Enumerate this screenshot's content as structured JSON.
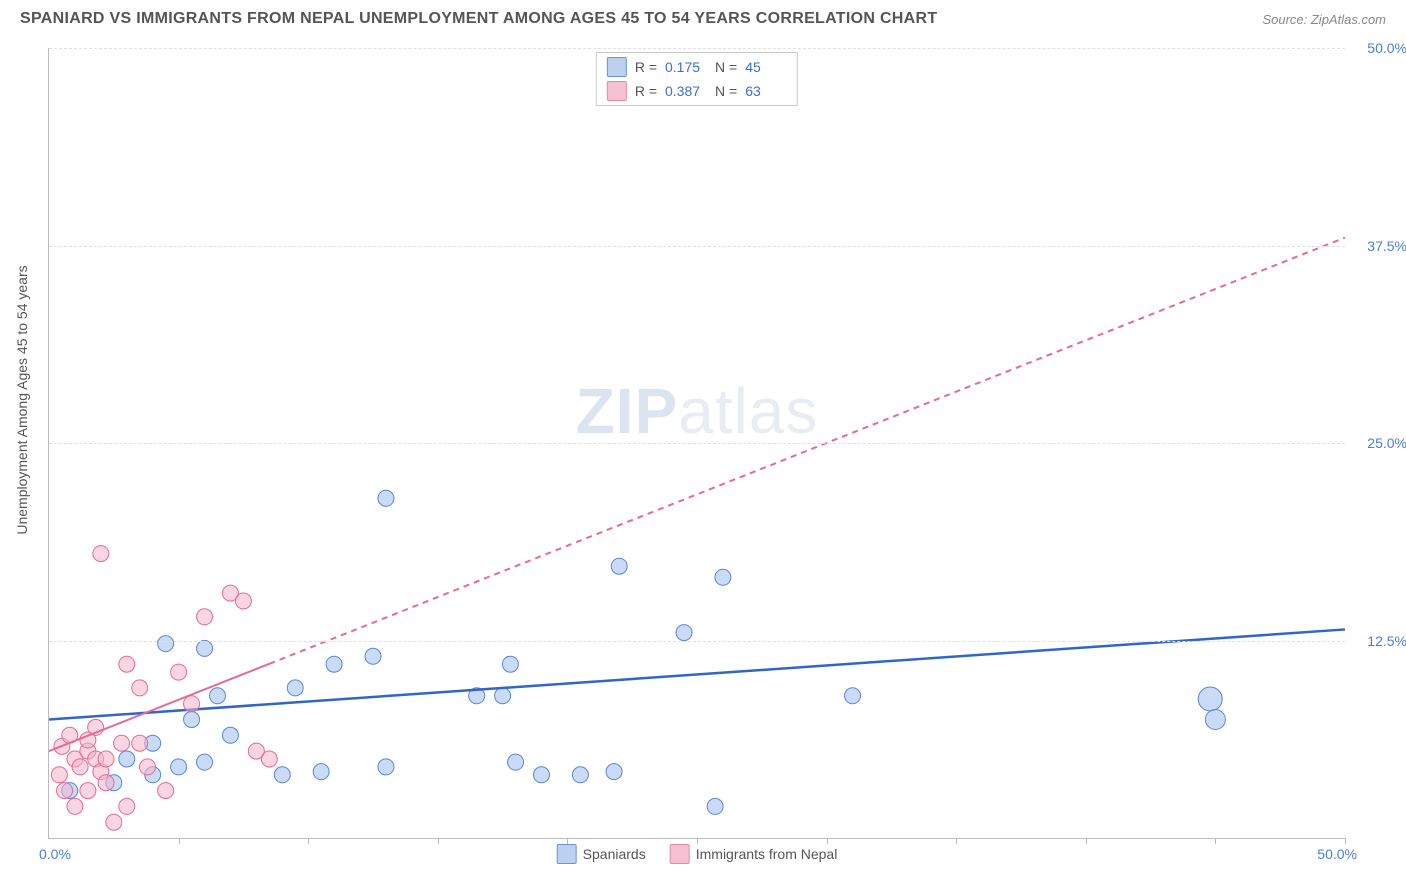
{
  "title": "SPANIARD VS IMMIGRANTS FROM NEPAL UNEMPLOYMENT AMONG AGES 45 TO 54 YEARS CORRELATION CHART",
  "source": "Source: ZipAtlas.com",
  "watermark_bold": "ZIP",
  "watermark_light": "atlas",
  "y_axis_title": "Unemployment Among Ages 45 to 54 years",
  "chart": {
    "type": "scatter",
    "background_color": "#ffffff",
    "grid_color": "#e0e0e0",
    "axis_color": "#bbbbbb",
    "tick_label_color": "#4a7fd8",
    "tick_fontsize": 14,
    "xlim": [
      0,
      50
    ],
    "ylim": [
      0,
      50
    ],
    "x_ticks": [
      0,
      5,
      10,
      15,
      20,
      25,
      30,
      35,
      40,
      45,
      50
    ],
    "y_ticks": [
      12.5,
      25.0,
      37.5,
      50.0
    ],
    "x_min_label": "0.0%",
    "x_max_label": "50.0%",
    "y_tick_labels": [
      "12.5%",
      "25.0%",
      "37.5%",
      "50.0%"
    ],
    "marker_opacity": 0.55,
    "marker_stroke_width": 1.0
  },
  "series": [
    {
      "name": "Spaniards",
      "color_fill": "#9fbef0",
      "color_stroke": "#5a86d6",
      "swatch_fill": "#bcd0f0",
      "swatch_border": "#6a93db",
      "R": "0.175",
      "N": "45",
      "marker_radius": 8,
      "regression": {
        "x1": 0,
        "y1": 7.5,
        "x2": 50,
        "y2": 13.2,
        "solid_until_x": 50,
        "stroke": "#2f66c8",
        "stroke_width": 2.5,
        "dash": ""
      },
      "points": [
        {
          "x": 13.0,
          "y": 21.5,
          "r": 8
        },
        {
          "x": 22.0,
          "y": 17.2,
          "r": 8
        },
        {
          "x": 26.0,
          "y": 16.5,
          "r": 8
        },
        {
          "x": 24.5,
          "y": 13.0,
          "r": 8
        },
        {
          "x": 31.0,
          "y": 9.0,
          "r": 8
        },
        {
          "x": 44.8,
          "y": 8.8,
          "r": 12
        },
        {
          "x": 45.0,
          "y": 7.5,
          "r": 10
        },
        {
          "x": 16.5,
          "y": 9.0,
          "r": 8
        },
        {
          "x": 17.5,
          "y": 9.0,
          "r": 8
        },
        {
          "x": 25.7,
          "y": 2.0,
          "r": 8
        },
        {
          "x": 21.8,
          "y": 4.2,
          "r": 8
        },
        {
          "x": 20.5,
          "y": 4.0,
          "r": 8
        },
        {
          "x": 18.0,
          "y": 4.8,
          "r": 8
        },
        {
          "x": 19.0,
          "y": 4.0,
          "r": 8
        },
        {
          "x": 17.8,
          "y": 11.0,
          "r": 8
        },
        {
          "x": 12.5,
          "y": 11.5,
          "r": 8
        },
        {
          "x": 11.0,
          "y": 11.0,
          "r": 8
        },
        {
          "x": 9.5,
          "y": 9.5,
          "r": 8
        },
        {
          "x": 9.0,
          "y": 4.0,
          "r": 8
        },
        {
          "x": 10.5,
          "y": 4.2,
          "r": 8
        },
        {
          "x": 13.0,
          "y": 4.5,
          "r": 8
        },
        {
          "x": 6.0,
          "y": 12.0,
          "r": 8
        },
        {
          "x": 4.5,
          "y": 12.3,
          "r": 8
        },
        {
          "x": 6.5,
          "y": 9.0,
          "r": 8
        },
        {
          "x": 7.0,
          "y": 6.5,
          "r": 8
        },
        {
          "x": 4.0,
          "y": 6.0,
          "r": 8
        },
        {
          "x": 4.0,
          "y": 4.0,
          "r": 8
        },
        {
          "x": 5.0,
          "y": 4.5,
          "r": 8
        },
        {
          "x": 6.0,
          "y": 4.8,
          "r": 8
        },
        {
          "x": 5.5,
          "y": 7.5,
          "r": 8
        },
        {
          "x": 2.5,
          "y": 3.5,
          "r": 8
        },
        {
          "x": 3.0,
          "y": 5.0,
          "r": 8
        },
        {
          "x": 0.8,
          "y": 3.0,
          "r": 8
        }
      ]
    },
    {
      "name": "Immigrants from Nepal",
      "color_fill": "#f4b5c8",
      "color_stroke": "#e76a94",
      "swatch_fill": "#f5c1d2",
      "swatch_border": "#e985a8",
      "R": "0.387",
      "N": "63",
      "marker_radius": 8,
      "regression": {
        "x1": 0,
        "y1": 5.5,
        "x2": 50,
        "y2": 38.0,
        "solid_until_x": 8.5,
        "stroke": "#e76a94",
        "stroke_width": 2,
        "dash": "6,5"
      },
      "points": [
        {
          "x": 2.0,
          "y": 18.0,
          "r": 8
        },
        {
          "x": 3.0,
          "y": 11.0,
          "r": 8
        },
        {
          "x": 3.5,
          "y": 9.5,
          "r": 8
        },
        {
          "x": 7.0,
          "y": 15.5,
          "r": 8
        },
        {
          "x": 7.5,
          "y": 15.0,
          "r": 8
        },
        {
          "x": 6.0,
          "y": 14.0,
          "r": 8
        },
        {
          "x": 5.0,
          "y": 10.5,
          "r": 8
        },
        {
          "x": 5.5,
          "y": 8.5,
          "r": 8
        },
        {
          "x": 8.0,
          "y": 5.5,
          "r": 8
        },
        {
          "x": 8.5,
          "y": 5.0,
          "r": 8
        },
        {
          "x": 4.5,
          "y": 3.0,
          "r": 8
        },
        {
          "x": 3.0,
          "y": 2.0,
          "r": 8
        },
        {
          "x": 2.5,
          "y": 1.0,
          "r": 8
        },
        {
          "x": 0.5,
          "y": 5.8,
          "r": 8
        },
        {
          "x": 0.8,
          "y": 6.5,
          "r": 8
        },
        {
          "x": 1.0,
          "y": 5.0,
          "r": 8
        },
        {
          "x": 1.2,
          "y": 4.5,
          "r": 8
        },
        {
          "x": 1.5,
          "y": 5.5,
          "r": 8
        },
        {
          "x": 1.5,
          "y": 6.2,
          "r": 8
        },
        {
          "x": 1.8,
          "y": 5.0,
          "r": 8
        },
        {
          "x": 2.0,
          "y": 4.2,
          "r": 8
        },
        {
          "x": 2.2,
          "y": 5.0,
          "r": 8
        },
        {
          "x": 2.2,
          "y": 3.5,
          "r": 8
        },
        {
          "x": 0.4,
          "y": 4.0,
          "r": 8
        },
        {
          "x": 0.6,
          "y": 3.0,
          "r": 8
        },
        {
          "x": 1.0,
          "y": 2.0,
          "r": 8
        },
        {
          "x": 1.5,
          "y": 3.0,
          "r": 8
        },
        {
          "x": 2.8,
          "y": 6.0,
          "r": 8
        },
        {
          "x": 3.5,
          "y": 6.0,
          "r": 8
        },
        {
          "x": 3.8,
          "y": 4.5,
          "r": 8
        },
        {
          "x": 1.8,
          "y": 7.0,
          "r": 8
        }
      ]
    }
  ],
  "bottom_legend": [
    {
      "label": "Spaniards",
      "swatch_fill": "#bcd0f0",
      "swatch_border": "#6a93db"
    },
    {
      "label": "Immigrants from Nepal",
      "swatch_fill": "#f5c1d2",
      "swatch_border": "#e985a8"
    }
  ],
  "stats_legend": {
    "R_label": "R  =",
    "N_label": "N  ="
  }
}
